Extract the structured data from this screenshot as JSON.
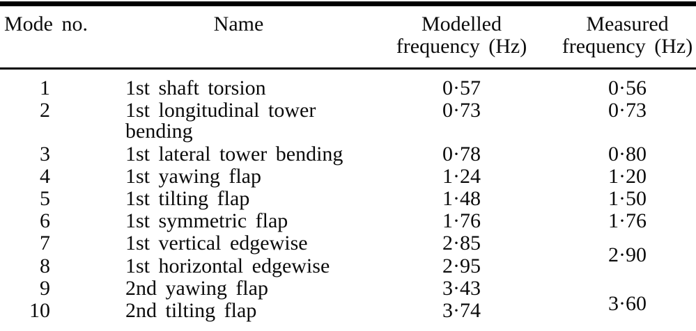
{
  "table": {
    "headers": {
      "mode_no": "Mode no.",
      "name": "Name",
      "modelled": "Modelled\nfrequency (Hz)",
      "measured": "Measured\nfrequency (Hz)"
    },
    "rows": [
      {
        "mode_no": "1",
        "name": "1st shaft torsion",
        "modelled_hz": "0·57",
        "measured_hz": "0·56"
      },
      {
        "mode_no": "2",
        "name": "1st longitudinal tower bending",
        "modelled_hz": "0·73",
        "measured_hz": "0·73"
      },
      {
        "mode_no": "3",
        "name": "1st lateral tower bending",
        "modelled_hz": "0·78",
        "measured_hz": "0·80"
      },
      {
        "mode_no": "4",
        "name": "1st yawing flap",
        "modelled_hz": "1·24",
        "measured_hz": "1·20"
      },
      {
        "mode_no": "5",
        "name": "1st tilting flap",
        "modelled_hz": "1·48",
        "measured_hz": "1·50"
      },
      {
        "mode_no": "6",
        "name": "1st symmetric flap",
        "modelled_hz": "1·76",
        "measured_hz": "1·76"
      },
      {
        "mode_no": "7",
        "name": "1st vertical edgewise",
        "modelled_hz": "2·85",
        "measured_hz": "2·90"
      },
      {
        "mode_no": "8",
        "name": "1st horizontal edgewise",
        "modelled_hz": "2·95"
      },
      {
        "mode_no": "9",
        "name": "2nd yawing flap",
        "modelled_hz": "3·43",
        "measured_hz": "3·60"
      },
      {
        "mode_no": "10",
        "name": "2nd tilting flap",
        "modelled_hz": "3·74"
      }
    ],
    "colors": {
      "text": "#0b0b0b",
      "rule": "#000000",
      "background": "#ffffff"
    }
  }
}
